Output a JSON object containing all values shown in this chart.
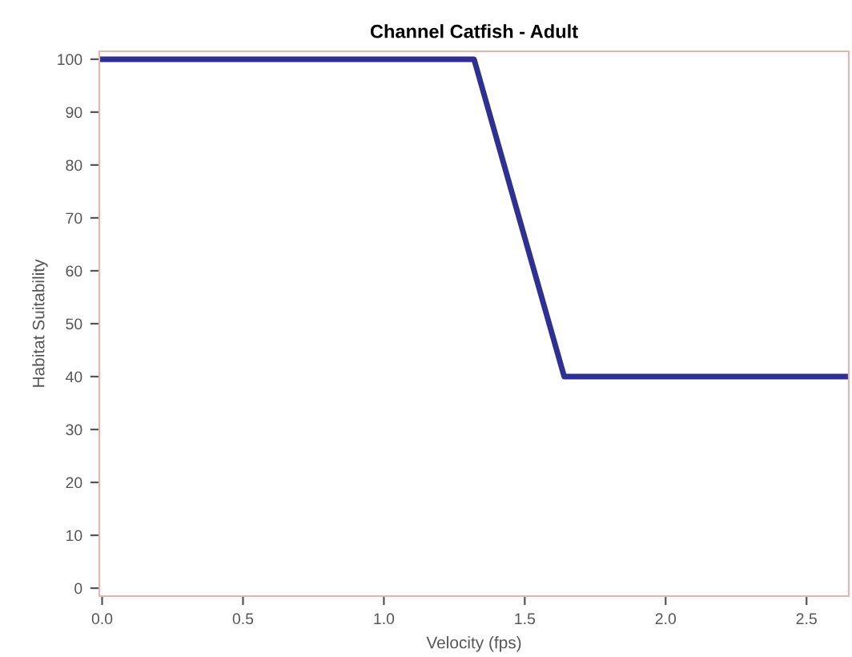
{
  "chart_data": {
    "type": "line",
    "title": "Channel Catfish - Adult",
    "xlabel": "Velocity (fps)",
    "ylabel": "Habitat Suitability",
    "x": [
      0,
      1.32,
      1.64,
      2.64
    ],
    "series": [
      {
        "color": "#2e3192",
        "values": [
          100,
          100,
          40,
          40
        ]
      }
    ],
    "xlim": [
      -0.01,
      2.65
    ],
    "ylim": [
      -1.5,
      101.5
    ],
    "xticks": [
      {
        "value": 0,
        "label": "0.0"
      },
      0.5,
      {
        "value": 1,
        "label": "1.0"
      },
      1.5,
      {
        "value": 2,
        "label": "2.0"
      },
      2.5
    ],
    "yticks": [
      0,
      10,
      20,
      30,
      40,
      50,
      60,
      70,
      80,
      90,
      100
    ],
    "grid": false,
    "legend": false,
    "marker": "none",
    "line_style": "solid"
  }
}
